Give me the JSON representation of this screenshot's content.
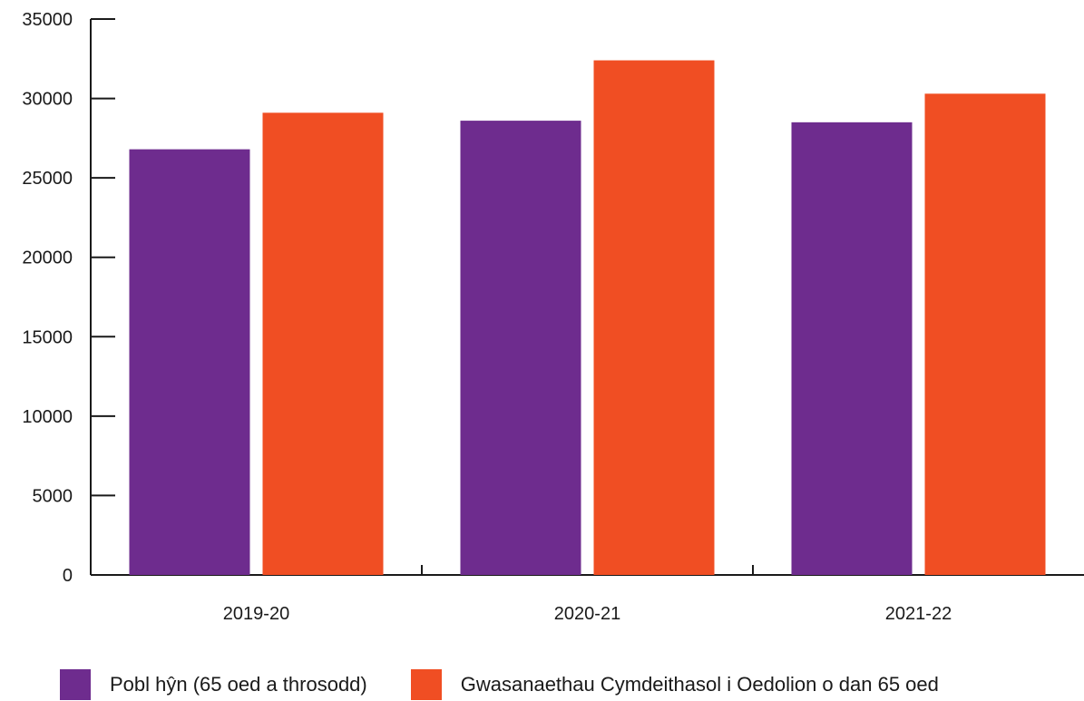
{
  "chart_data": {
    "type": "bar",
    "title": "",
    "xlabel": "",
    "ylabel": "",
    "categories": [
      "2019-20",
      "2020-21",
      "2021-22"
    ],
    "series": [
      {
        "name": "Pobl hŷn (65 oed a throsodd)",
        "color": "#6e2c8e",
        "values": [
          26800,
          28600,
          28500
        ]
      },
      {
        "name": "Gwasanaethau Cymdeithasol i Oedolion o dan 65 oed",
        "color": "#f04e23",
        "values": [
          29100,
          32400,
          30300
        ]
      }
    ],
    "ylim": [
      0,
      35000
    ],
    "yticks": [
      "0",
      "5000",
      "10000",
      "15000",
      "20000",
      "25000",
      "30000",
      "35000"
    ],
    "grid": false,
    "legend_position": "bottom-left"
  }
}
